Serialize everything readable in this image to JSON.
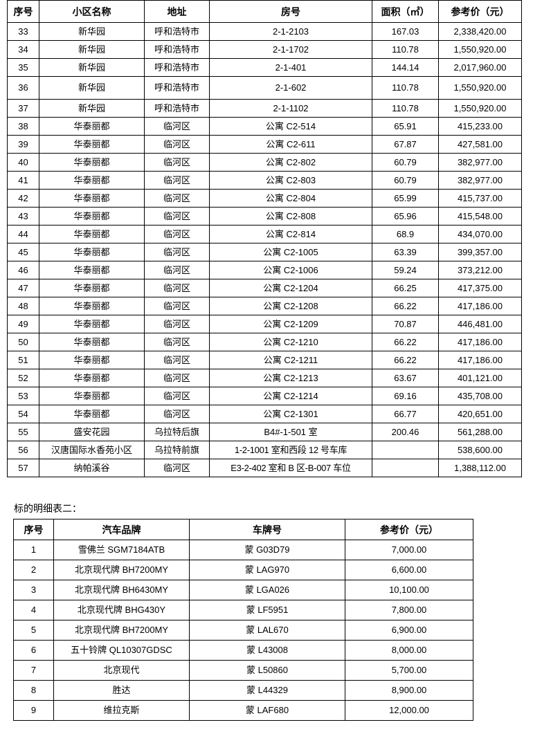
{
  "table1": {
    "headers": [
      "序号",
      "小区名称",
      "地址",
      "房号",
      "面积（㎡）",
      "参考价（元）"
    ],
    "rows": [
      [
        "33",
        "新华园",
        "呼和浩特市",
        "2-1-2103",
        "167.03",
        "2,338,420.00"
      ],
      [
        "34",
        "新华园",
        "呼和浩特市",
        "2-1-1702",
        "110.78",
        "1,550,920.00"
      ],
      [
        "35",
        "新华园",
        "呼和浩特市",
        "2-1-401",
        "144.14",
        "2,017,960.00"
      ],
      [
        "36",
        "新华园",
        "呼和浩特市",
        "2-1-602",
        "110.78",
        "1,550,920.00"
      ],
      [
        "37",
        "新华园",
        "呼和浩特市",
        "2-1-1102",
        "110.78",
        "1,550,920.00"
      ],
      [
        "38",
        "华泰丽都",
        "临河区",
        "公寓 C2-514",
        "65.91",
        "415,233.00"
      ],
      [
        "39",
        "华泰丽都",
        "临河区",
        "公寓 C2-611",
        "67.87",
        "427,581.00"
      ],
      [
        "40",
        "华泰丽都",
        "临河区",
        "公寓 C2-802",
        "60.79",
        "382,977.00"
      ],
      [
        "41",
        "华泰丽都",
        "临河区",
        "公寓 C2-803",
        "60.79",
        "382,977.00"
      ],
      [
        "42",
        "华泰丽都",
        "临河区",
        "公寓 C2-804",
        "65.99",
        "415,737.00"
      ],
      [
        "43",
        "华泰丽都",
        "临河区",
        "公寓 C2-808",
        "65.96",
        "415,548.00"
      ],
      [
        "44",
        "华泰丽都",
        "临河区",
        "公寓 C2-814",
        "68.9",
        "434,070.00"
      ],
      [
        "45",
        "华泰丽都",
        "临河区",
        "公寓 C2-1005",
        "63.39",
        "399,357.00"
      ],
      [
        "46",
        "华泰丽都",
        "临河区",
        "公寓 C2-1006",
        "59.24",
        "373,212.00"
      ],
      [
        "47",
        "华泰丽都",
        "临河区",
        "公寓 C2-1204",
        "66.25",
        "417,375.00"
      ],
      [
        "48",
        "华泰丽都",
        "临河区",
        "公寓 C2-1208",
        "66.22",
        "417,186.00"
      ],
      [
        "49",
        "华泰丽都",
        "临河区",
        "公寓 C2-1209",
        "70.87",
        "446,481.00"
      ],
      [
        "50",
        "华泰丽都",
        "临河区",
        "公寓 C2-1210",
        "66.22",
        "417,186.00"
      ],
      [
        "51",
        "华泰丽都",
        "临河区",
        "公寓 C2-1211",
        "66.22",
        "417,186.00"
      ],
      [
        "52",
        "华泰丽都",
        "临河区",
        "公寓 C2-1213",
        "63.67",
        "401,121.00"
      ],
      [
        "53",
        "华泰丽都",
        "临河区",
        "公寓 C2-1214",
        "69.16",
        "435,708.00"
      ],
      [
        "54",
        "华泰丽都",
        "临河区",
        "公寓 C2-1301",
        "66.77",
        "420,651.00"
      ],
      [
        "55",
        "盛安花园",
        "乌拉特后旗",
        "B4#-1-501 室",
        "200.46",
        "561,288.00"
      ],
      [
        "56",
        "汉唐国际水香苑小区",
        "乌拉特前旗",
        "1-2-1001 室和西段 12 号车库",
        "",
        "538,600.00"
      ],
      [
        "57",
        "纳帕溪谷",
        "临河区",
        "E3-2-402 室和 B 区-B-007 车位",
        "",
        "1,388,112.00"
      ]
    ]
  },
  "table2_label": "标的明细表二：",
  "table2": {
    "headers": [
      "序号",
      "汽车品牌",
      "车牌号",
      "参考价（元）"
    ],
    "rows": [
      [
        "1",
        "雪佛兰 SGM7184ATB",
        "蒙 G03D79",
        "7,000.00"
      ],
      [
        "2",
        "北京现代牌 BH7200MY",
        "蒙 LAG970",
        "6,600.00"
      ],
      [
        "3",
        "北京现代牌 BH6430MY",
        "蒙 LGA026",
        "10,100.00"
      ],
      [
        "4",
        "北京现代牌 BHG430Y",
        "蒙 LF5951",
        "7,800.00"
      ],
      [
        "5",
        "北京现代牌 BH7200MY",
        "蒙 LAL670",
        "6,900.00"
      ],
      [
        "6",
        "五十铃牌 QL10307GDSC",
        "蒙 L43008",
        "8,000.00"
      ],
      [
        "7",
        "北京现代",
        "蒙 L50860",
        "5,700.00"
      ],
      [
        "8",
        "胜达",
        "蒙 L44329",
        "8,900.00"
      ],
      [
        "9",
        "维拉克斯",
        "蒙 LAF680",
        "12,000.00"
      ]
    ]
  }
}
